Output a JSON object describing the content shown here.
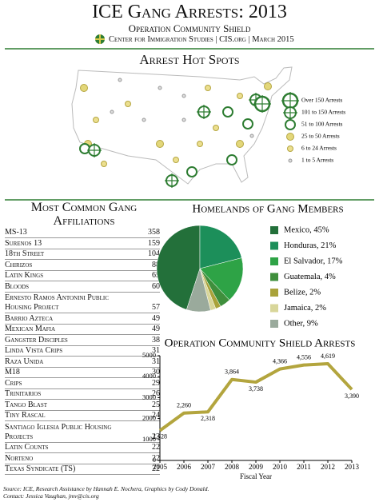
{
  "header": {
    "title": "ICE Gang Arrests: 2013",
    "subtitle": "Operation Community Shield",
    "credit": "Center for Immigration Studies | CIS.org | March 2015"
  },
  "map": {
    "title": "Arrest Hot Spots",
    "legend": [
      "Over 150 Arrests",
      "101 to 150 Arrests",
      "51 to 100 Arrests",
      "25 to 50 Arrests",
      "6 to 24 Arrests",
      "1 to 5 Arrests"
    ]
  },
  "gangs": {
    "title": "Most Common Gang Affiliations",
    "rows": [
      [
        "MS-13",
        358
      ],
      [
        "Surenos 13",
        159
      ],
      [
        "18th Street",
        104
      ],
      [
        "Chirizos",
        88
      ],
      [
        "Latin Kings",
        65
      ],
      [
        "Bloods",
        60
      ],
      [
        "Ernesto Ramos Antonini Public Housing Project",
        57
      ],
      [
        "Barrio Azteca",
        49
      ],
      [
        "Mexican Mafia",
        49
      ],
      [
        "Gangster Disciples",
        38
      ],
      [
        "Linda Vista Crips",
        31
      ],
      [
        "Raza Unida",
        31
      ],
      [
        "M18",
        30
      ],
      [
        "Crips",
        29
      ],
      [
        "Trinitarios",
        26
      ],
      [
        "Tango Blast",
        25
      ],
      [
        "Tiny Rascal",
        24
      ],
      [
        "Santiago Iglesia Public Housing Projects",
        23
      ],
      [
        "Latin Counts",
        22
      ],
      [
        "Norteno",
        22
      ],
      [
        "Texas Syndicate (TS)",
        22
      ]
    ]
  },
  "chart_data": [
    {
      "type": "pie",
      "title": "Homelands of Gang Members",
      "categories": [
        "Mexico, 45%",
        "Honduras, 21%",
        "El Salvador, 17%",
        "Guatemala, 4%",
        "Belize, 2%",
        "Jamaica, 2%",
        "Other, 9%"
      ],
      "values": [
        45,
        21,
        17,
        4,
        2,
        2,
        9
      ],
      "colors": [
        "#23703a",
        "#1c8f5a",
        "#2ea346",
        "#3f8f3c",
        "#a9a23a",
        "#d8d69a",
        "#9aaa9c"
      ]
    },
    {
      "type": "line",
      "title": "Operation Community Shield Arrests",
      "x": [
        2005,
        2006,
        2007,
        2008,
        2009,
        2010,
        2011,
        2012,
        2013
      ],
      "values": [
        1428,
        2260,
        2318,
        3864,
        3738,
        4366,
        4556,
        4619,
        3390
      ],
      "value_labels": [
        "1,428",
        "2,260",
        "2,318",
        "3,864",
        "3,738",
        "4,366",
        "4,556",
        "4,619",
        "3,390"
      ],
      "color": "#b3a53e",
      "xlabel": "Fiscal Year",
      "xlim": [
        2005,
        2013
      ],
      "xticks": [
        2005,
        2006,
        2007,
        2008,
        2009,
        2010,
        2011,
        2012,
        2013
      ],
      "ylim": [
        0,
        5000
      ],
      "yticks": [
        0,
        1000,
        2000,
        3000,
        4000,
        5000
      ],
      "grid": false
    }
  ],
  "footer": {
    "source": "Source: ICE, Research Assistance by Hannah E. Nochera, Graphics by Cody Donald.",
    "contact": "Contact: Jessica Vaughan, jmv@cis.org"
  }
}
